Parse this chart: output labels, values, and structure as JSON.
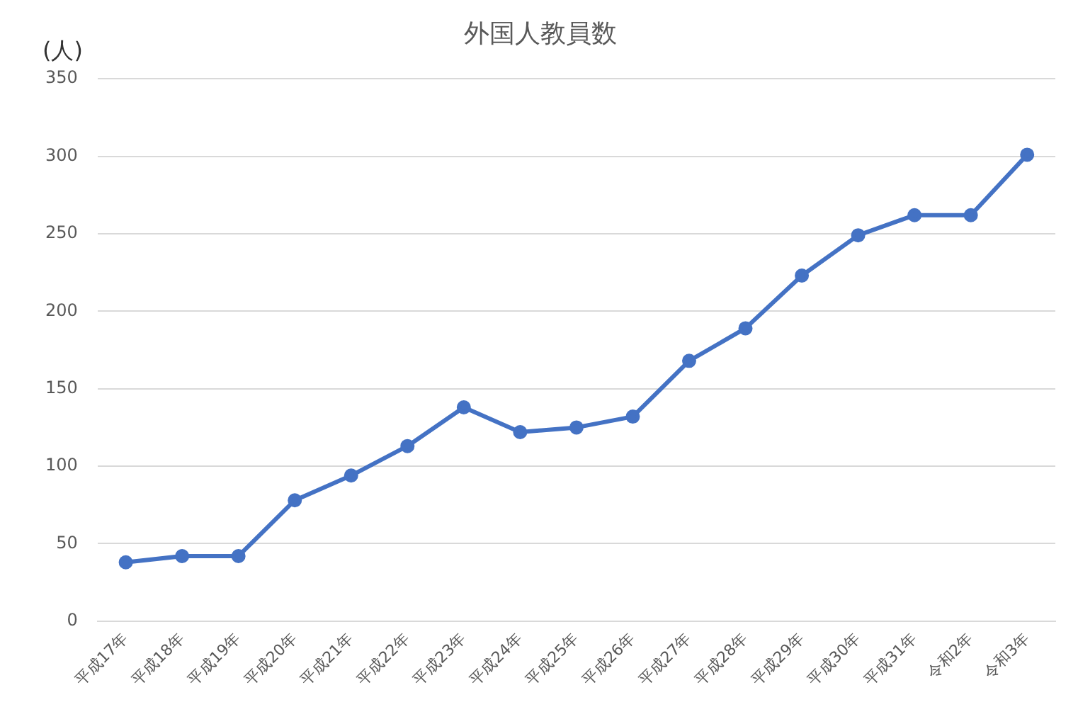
{
  "chart_data": {
    "type": "line",
    "title": "外国人教員数",
    "ylabel": "(人)",
    "categories": [
      "平成17年",
      "平成18年",
      "平成19年",
      "平成20年",
      "平成21年",
      "平成22年",
      "平成23年",
      "平成24年",
      "平成25年",
      "平成26年",
      "平成27年",
      "平成28年",
      "平成29年",
      "平成30年",
      "平成31年",
      "令和2年",
      "令和3年"
    ],
    "series": [
      {
        "color": "#4472c4",
        "values": [
          38,
          42,
          42,
          78,
          94,
          113,
          138,
          122,
          125,
          132,
          168,
          189,
          223,
          249,
          262,
          262,
          301
        ]
      }
    ],
    "ylim": [
      0,
      350
    ],
    "yticks": [
      0,
      50,
      100,
      150,
      200,
      250,
      300,
      350
    ],
    "grid": "y",
    "legend": false,
    "marker": "circle",
    "line_style": "solid"
  }
}
